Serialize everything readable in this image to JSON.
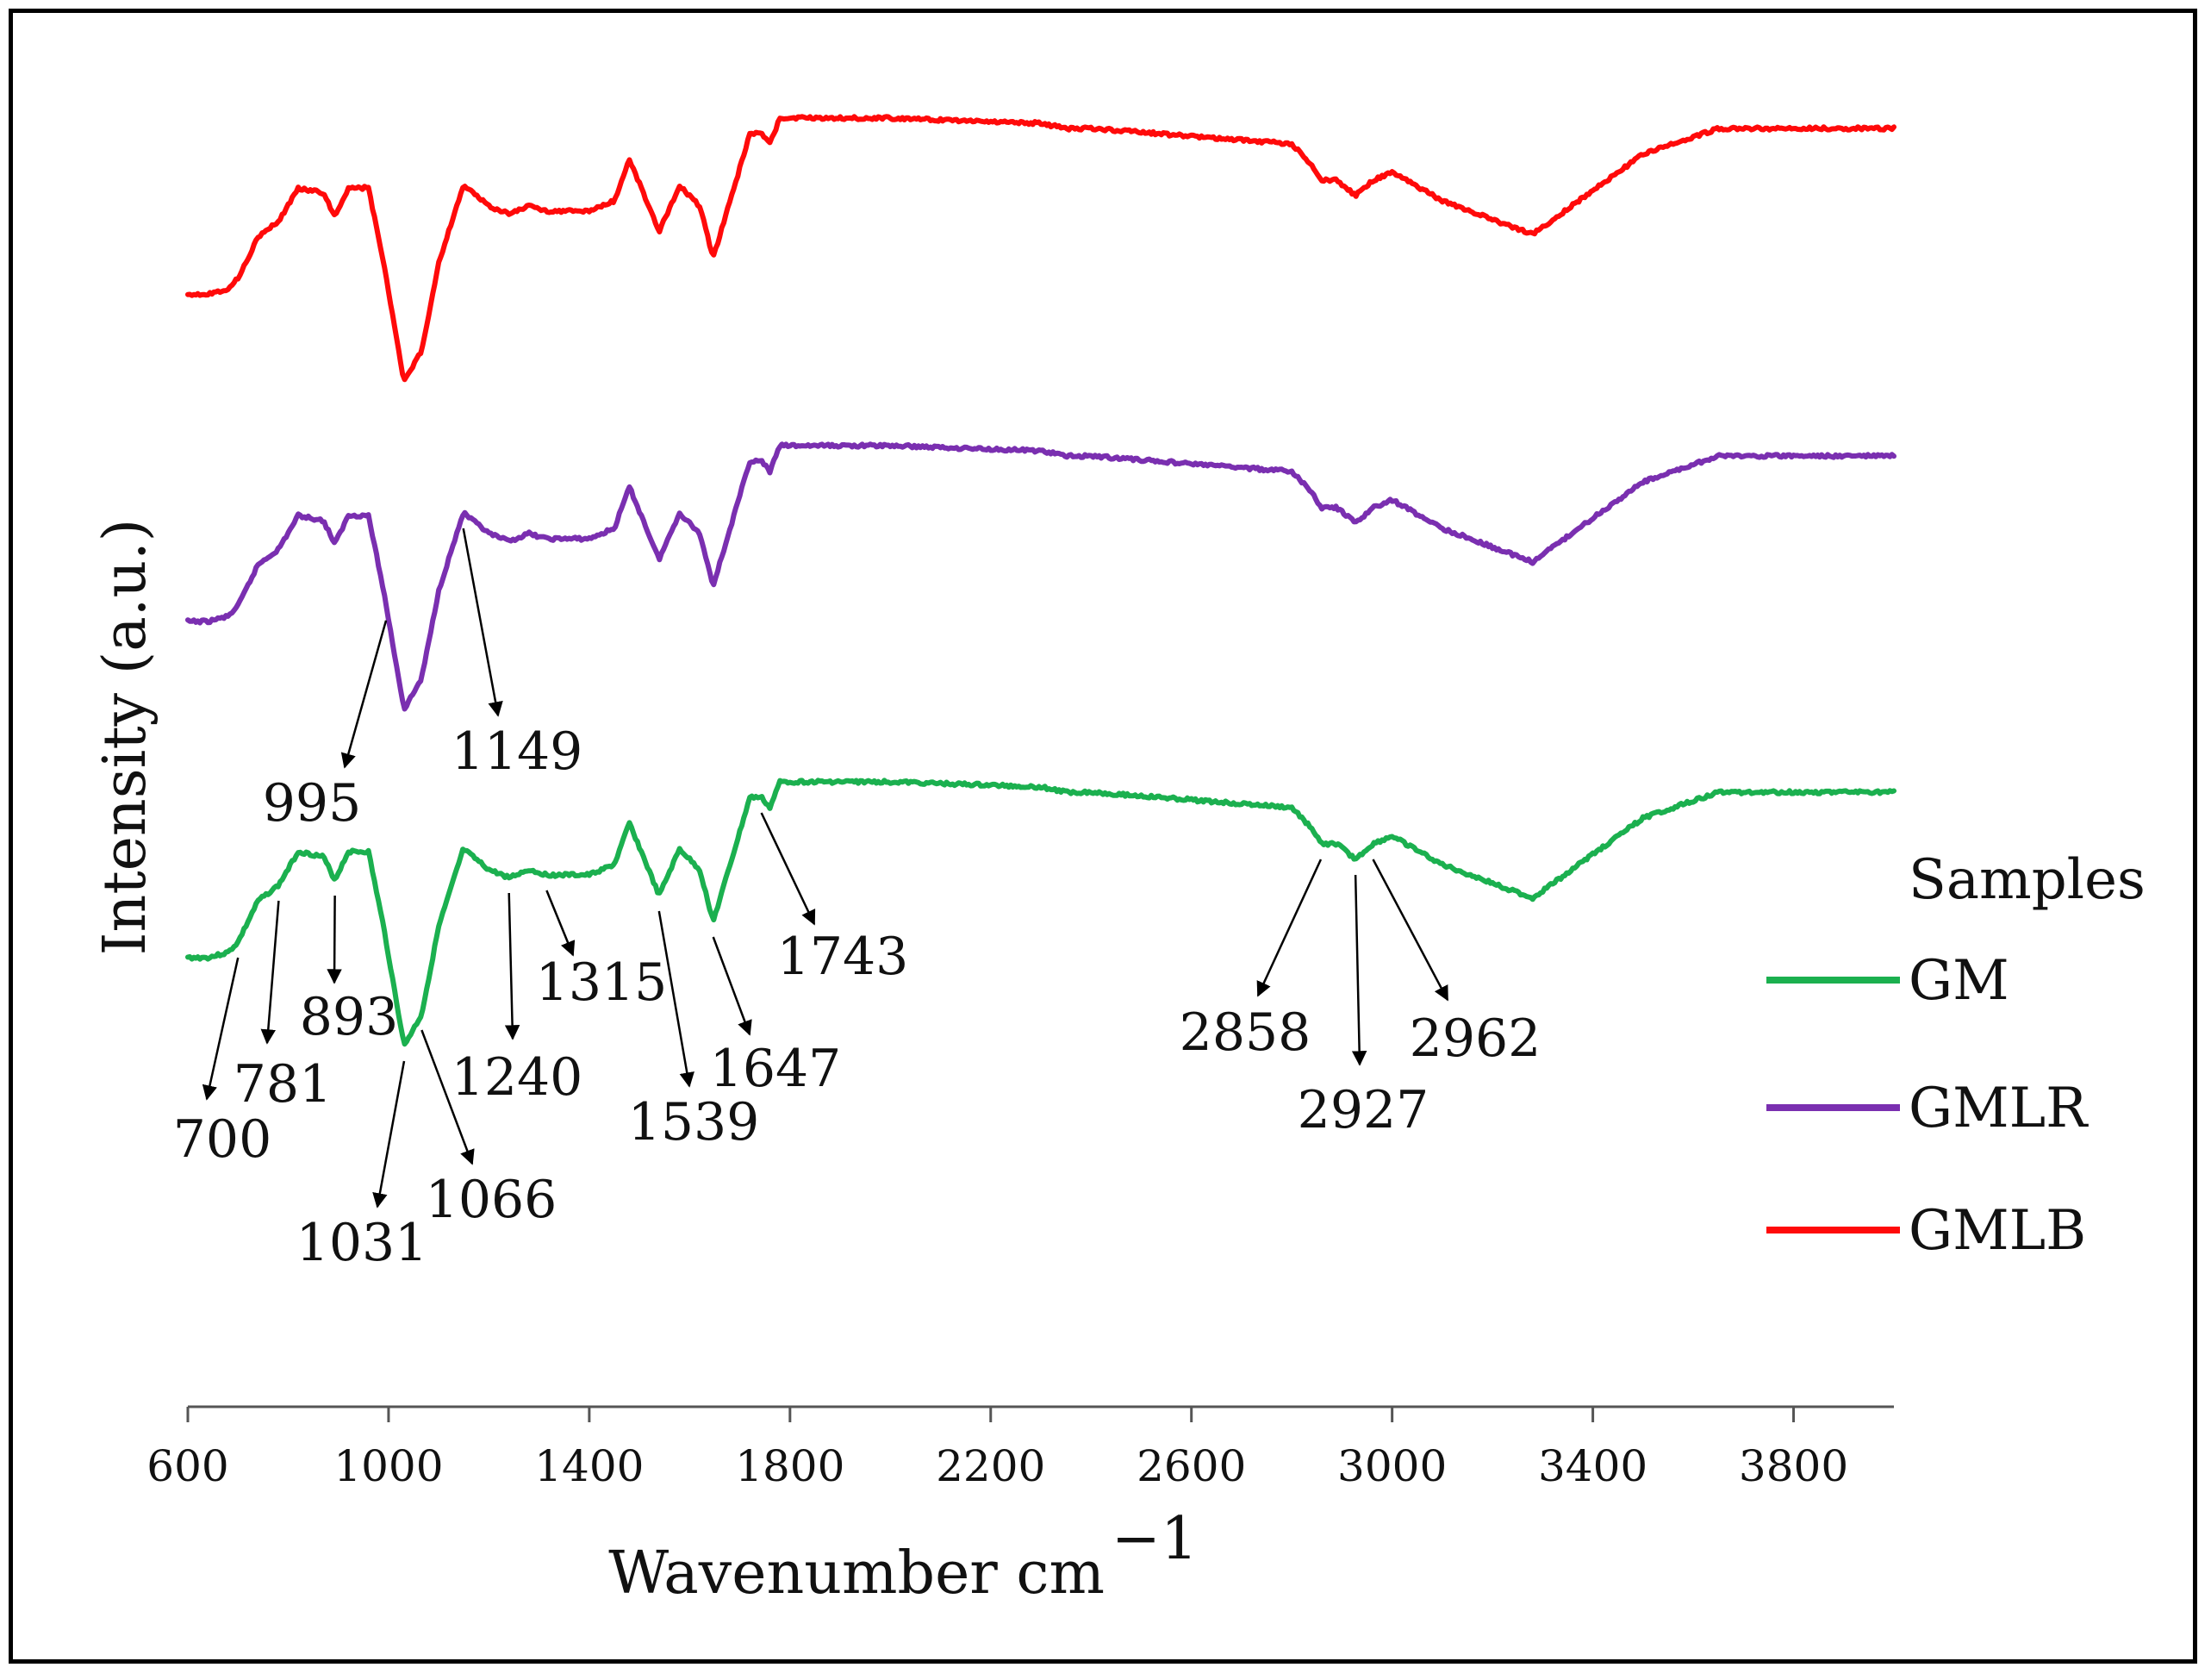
{
  "chart_data": {
    "type": "line",
    "title": "",
    "xlabel": "Wavenumber cm",
    "xlabel_superscript": "−1",
    "ylabel": "Intensity (a.u.)",
    "xlim": [
      600,
      4000
    ],
    "xticks": [
      600,
      1000,
      1400,
      1800,
      2200,
      2600,
      3000,
      3400,
      3800
    ],
    "grid": false,
    "legend": {
      "title": "Samples",
      "placement": "right",
      "entries": [
        "GM",
        "GMLR",
        "GMLB"
      ]
    },
    "series": [
      {
        "name": "GM",
        "color": "#1bb04f",
        "offset": 0,
        "points": [
          [
            600,
            1.6
          ],
          [
            640,
            1.6
          ],
          [
            680,
            1.5
          ],
          [
            700,
            1.3
          ],
          [
            740,
            0.5
          ],
          [
            781,
            0.2
          ],
          [
            820,
            -0.45
          ],
          [
            870,
            -0.35
          ],
          [
            893,
            0.1
          ],
          [
            920,
            -0.45
          ],
          [
            960,
            -0.45
          ],
          [
            990,
            1.0
          ],
          [
            1031,
            3.3
          ],
          [
            1066,
            2.7
          ],
          [
            1100,
            1.0
          ],
          [
            1149,
            -0.5
          ],
          [
            1200,
            -0.1
          ],
          [
            1240,
            0.05
          ],
          [
            1280,
            -0.1
          ],
          [
            1315,
            0.0
          ],
          [
            1400,
            0.0
          ],
          [
            1450,
            -0.2
          ],
          [
            1480,
            -1.0
          ],
          [
            1510,
            -0.3
          ],
          [
            1539,
            0.4
          ],
          [
            1580,
            -0.5
          ],
          [
            1620,
            -0.1
          ],
          [
            1647,
            0.9
          ],
          [
            1690,
            -0.5
          ],
          [
            1720,
            -1.5
          ],
          [
            1743,
            -1.5
          ],
          [
            1760,
            -1.3
          ],
          [
            1780,
            -1.8
          ],
          [
            2000,
            -1.8
          ],
          [
            2300,
            -1.7
          ],
          [
            2350,
            -1.6
          ],
          [
            2400,
            -1.6
          ],
          [
            2800,
            -1.3
          ],
          [
            2840,
            -0.9
          ],
          [
            2858,
            -0.6
          ],
          [
            2890,
            -0.6
          ],
          [
            2927,
            -0.3
          ],
          [
            2962,
            -0.6
          ],
          [
            3000,
            -0.75
          ],
          [
            3100,
            -0.2
          ],
          [
            3280,
            0.45
          ],
          [
            3400,
            -0.4
          ],
          [
            3500,
            -1.1
          ],
          [
            3650,
            -1.6
          ],
          [
            3800,
            -1.6
          ],
          [
            4000,
            -1.6
          ]
        ]
      },
      {
        "name": "GMLR",
        "color": "#7a2fb0",
        "offset": 1,
        "points": [
          [
            600,
            1.6
          ],
          [
            640,
            1.6
          ],
          [
            680,
            1.5
          ],
          [
            700,
            1.3
          ],
          [
            740,
            0.5
          ],
          [
            781,
            0.2
          ],
          [
            820,
            -0.45
          ],
          [
            870,
            -0.35
          ],
          [
            893,
            0.1
          ],
          [
            920,
            -0.45
          ],
          [
            960,
            -0.45
          ],
          [
            990,
            1.0
          ],
          [
            1031,
            3.3
          ],
          [
            1066,
            2.7
          ],
          [
            1100,
            1.0
          ],
          [
            1149,
            -0.5
          ],
          [
            1200,
            -0.1
          ],
          [
            1240,
            0.05
          ],
          [
            1280,
            -0.1
          ],
          [
            1315,
            0.0
          ],
          [
            1400,
            0.0
          ],
          [
            1450,
            -0.2
          ],
          [
            1480,
            -1.0
          ],
          [
            1510,
            -0.3
          ],
          [
            1539,
            0.4
          ],
          [
            1580,
            -0.5
          ],
          [
            1620,
            -0.1
          ],
          [
            1647,
            0.9
          ],
          [
            1690,
            -0.5
          ],
          [
            1720,
            -1.5
          ],
          [
            1743,
            -1.5
          ],
          [
            1760,
            -1.3
          ],
          [
            1780,
            -1.8
          ],
          [
            2000,
            -1.8
          ],
          [
            2300,
            -1.7
          ],
          [
            2350,
            -1.6
          ],
          [
            2400,
            -1.6
          ],
          [
            2800,
            -1.3
          ],
          [
            2840,
            -0.9
          ],
          [
            2858,
            -0.6
          ],
          [
            2890,
            -0.6
          ],
          [
            2927,
            -0.3
          ],
          [
            2962,
            -0.6
          ],
          [
            3000,
            -0.75
          ],
          [
            3100,
            -0.2
          ],
          [
            3280,
            0.45
          ],
          [
            3400,
            -0.4
          ],
          [
            3500,
            -1.1
          ],
          [
            3650,
            -1.6
          ],
          [
            3800,
            -1.6
          ],
          [
            4000,
            -1.6
          ]
        ]
      },
      {
        "name": "GMLB",
        "color": "#ff0a0a",
        "offset": 2,
        "points": [
          [
            600,
            1.6
          ],
          [
            640,
            1.6
          ],
          [
            680,
            1.5
          ],
          [
            700,
            1.3
          ],
          [
            740,
            0.5
          ],
          [
            781,
            0.2
          ],
          [
            820,
            -0.45
          ],
          [
            870,
            -0.35
          ],
          [
            893,
            0.1
          ],
          [
            920,
            -0.45
          ],
          [
            960,
            -0.45
          ],
          [
            990,
            1.0
          ],
          [
            1031,
            3.3
          ],
          [
            1066,
            2.7
          ],
          [
            1100,
            1.0
          ],
          [
            1149,
            -0.5
          ],
          [
            1200,
            -0.1
          ],
          [
            1240,
            0.05
          ],
          [
            1280,
            -0.1
          ],
          [
            1315,
            0.0
          ],
          [
            1400,
            0.0
          ],
          [
            1450,
            -0.2
          ],
          [
            1480,
            -1.0
          ],
          [
            1510,
            -0.3
          ],
          [
            1539,
            0.4
          ],
          [
            1580,
            -0.5
          ],
          [
            1620,
            -0.1
          ],
          [
            1647,
            0.9
          ],
          [
            1690,
            -0.5
          ],
          [
            1720,
            -1.5
          ],
          [
            1743,
            -1.5
          ],
          [
            1760,
            -1.3
          ],
          [
            1780,
            -1.8
          ],
          [
            2000,
            -1.8
          ],
          [
            2300,
            -1.7
          ],
          [
            2350,
            -1.6
          ],
          [
            2400,
            -1.6
          ],
          [
            2800,
            -1.3
          ],
          [
            2840,
            -0.9
          ],
          [
            2858,
            -0.6
          ],
          [
            2890,
            -0.6
          ],
          [
            2927,
            -0.3
          ],
          [
            2962,
            -0.6
          ],
          [
            3000,
            -0.75
          ],
          [
            3100,
            -0.2
          ],
          [
            3280,
            0.45
          ],
          [
            3400,
            -0.4
          ],
          [
            3500,
            -1.1
          ],
          [
            3650,
            -1.6
          ],
          [
            3800,
            -1.6
          ],
          [
            4000,
            -1.6
          ]
        ]
      }
    ],
    "annotations": [
      {
        "label": "700",
        "series": "GM",
        "wavenumber": 700
      },
      {
        "label": "781",
        "series": "GM",
        "wavenumber": 781
      },
      {
        "label": "893",
        "series": "GM",
        "wavenumber": 893
      },
      {
        "label": "995",
        "series": "GMLR",
        "wavenumber": 995
      },
      {
        "label": "1031",
        "series": "GM",
        "wavenumber": 1031
      },
      {
        "label": "1066",
        "series": "GM",
        "wavenumber": 1066
      },
      {
        "label": "1149",
        "series": "GMLR",
        "wavenumber": 1149
      },
      {
        "label": "1240",
        "series": "GM",
        "wavenumber": 1240
      },
      {
        "label": "1315",
        "series": "GM",
        "wavenumber": 1315
      },
      {
        "label": "1539",
        "series": "GM",
        "wavenumber": 1539
      },
      {
        "label": "1647",
        "series": "GM",
        "wavenumber": 1647
      },
      {
        "label": "1743",
        "series": "GM",
        "wavenumber": 1743
      },
      {
        "label": "2858",
        "series": "GM",
        "wavenumber": 2858
      },
      {
        "label": "2927",
        "series": "GM",
        "wavenumber": 2927
      },
      {
        "label": "2962",
        "series": "GM",
        "wavenumber": 2962
      }
    ]
  }
}
